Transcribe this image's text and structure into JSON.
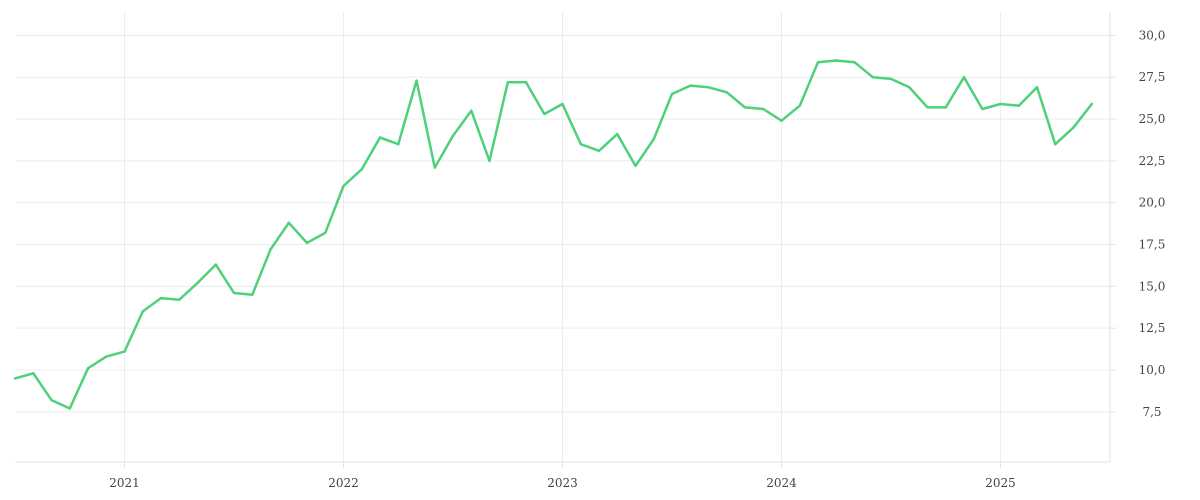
{
  "chart_data": {
    "type": "line",
    "title": "",
    "xlabel": "",
    "ylabel": "",
    "x_tick_labels": [
      "2021",
      "2022",
      "2023",
      "2024",
      "2025"
    ],
    "y_tick_labels": [
      "7,5",
      "10,0",
      "12,5",
      "15,0",
      "17,5",
      "20,0",
      "22,5",
      "25,0",
      "27,5",
      "30,0"
    ],
    "y_ticks": [
      7.5,
      10.0,
      12.5,
      15.0,
      17.5,
      20.0,
      22.5,
      25.0,
      27.5,
      30.0
    ],
    "ylim": [
      4.5,
      31.4
    ],
    "xlim": [
      "2020-07",
      "2025-07"
    ],
    "grid": true,
    "y_axis_side": "right",
    "colors": {
      "series": "#4fd07a"
    },
    "x": [
      "2020-07",
      "2020-08",
      "2020-09",
      "2020-10",
      "2020-11",
      "2020-12",
      "2021-01",
      "2021-02",
      "2021-03",
      "2021-04",
      "2021-05",
      "2021-06",
      "2021-07",
      "2021-08",
      "2021-09",
      "2021-10",
      "2021-11",
      "2021-12",
      "2022-01",
      "2022-02",
      "2022-03",
      "2022-04",
      "2022-05",
      "2022-06",
      "2022-07",
      "2022-08",
      "2022-09",
      "2022-10",
      "2022-11",
      "2022-12",
      "2023-01",
      "2023-02",
      "2023-03",
      "2023-04",
      "2023-05",
      "2023-06",
      "2023-07",
      "2023-08",
      "2023-09",
      "2023-10",
      "2023-11",
      "2023-12",
      "2024-01",
      "2024-02",
      "2024-03",
      "2024-04",
      "2024-05",
      "2024-06",
      "2024-07",
      "2024-08",
      "2024-09",
      "2024-10",
      "2024-11",
      "2024-12",
      "2025-01",
      "2025-02",
      "2025-03",
      "2025-04",
      "2025-05",
      "2025-06"
    ],
    "series": [
      {
        "values": [
          9.5,
          9.8,
          8.2,
          7.7,
          10.1,
          10.8,
          11.1,
          13.5,
          14.3,
          14.2,
          15.2,
          16.3,
          14.6,
          14.5,
          17.2,
          18.8,
          17.6,
          18.2,
          21.0,
          22.0,
          23.9,
          23.5,
          27.3,
          22.1,
          24.0,
          25.5,
          22.5,
          27.2,
          27.2,
          25.3,
          25.9,
          23.5,
          23.1,
          24.1,
          22.2,
          23.8,
          26.5,
          27.0,
          26.9,
          26.6,
          25.7,
          25.6,
          24.9,
          25.8,
          28.4,
          28.5,
          28.4,
          27.5,
          27.4,
          26.9,
          25.7,
          25.7,
          27.5,
          25.6,
          25.9,
          25.8,
          26.9,
          23.5,
          24.5,
          25.9
        ]
      }
    ]
  }
}
